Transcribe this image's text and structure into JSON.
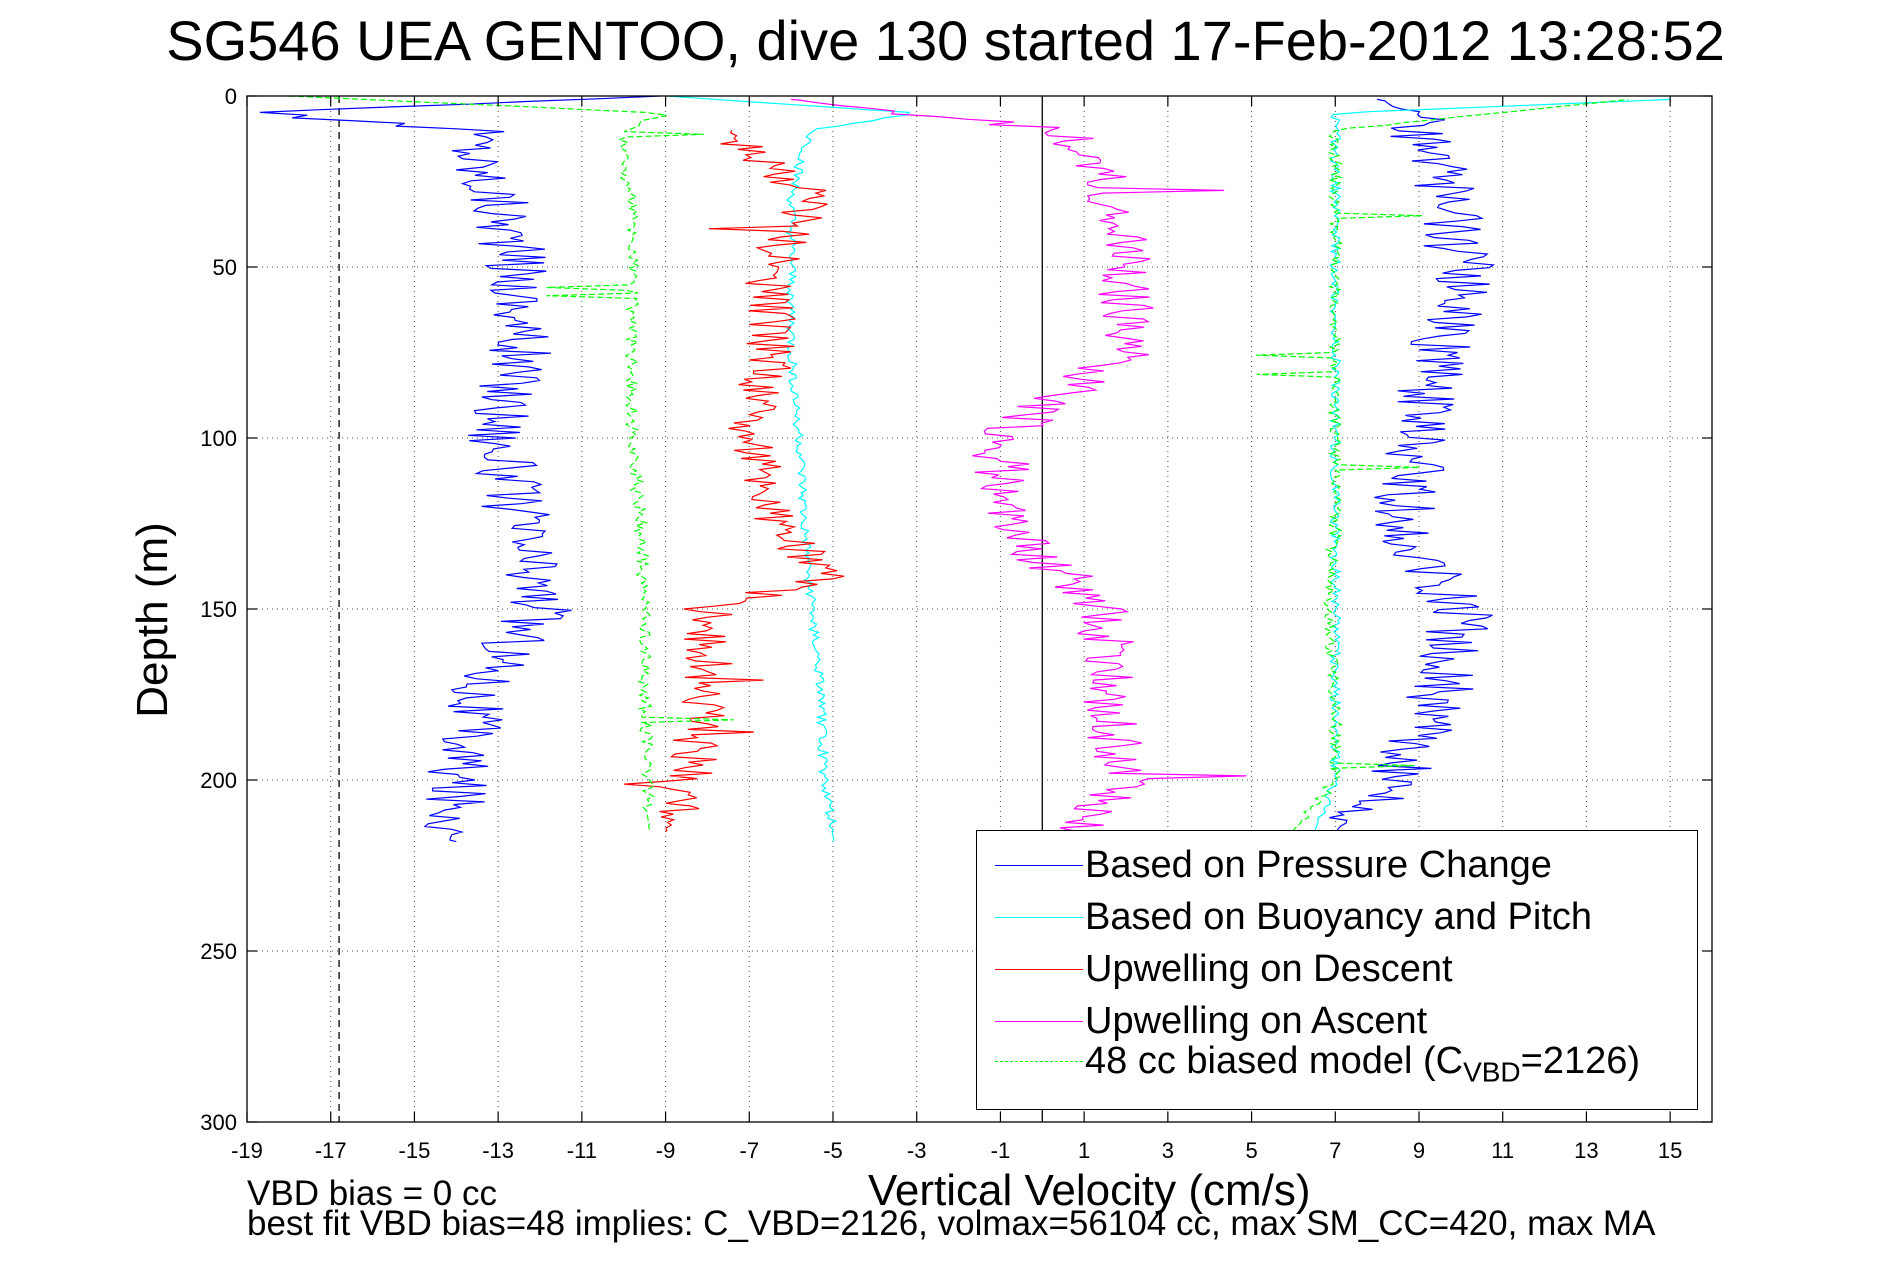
{
  "chart_data": {
    "type": "line",
    "title": "SG546 UEA GENTOO, dive 130 started 17-Feb-2012 13:28:52",
    "xlabel": "Vertical Velocity (cm/s)",
    "ylabel": "Depth (m)",
    "xlim": [
      -19,
      16
    ],
    "ylim": [
      300,
      0
    ],
    "x_ticks": [
      -19,
      -17,
      -15,
      -13,
      -11,
      -9,
      -7,
      -5,
      -3,
      -1,
      1,
      3,
      5,
      7,
      9,
      11,
      13,
      15
    ],
    "y_ticks": [
      0,
      50,
      100,
      150,
      200,
      250,
      300
    ],
    "grid": true,
    "legend_position": "bottom-right",
    "reference_lines": [
      {
        "x": -16.8,
        "style": "dashed",
        "color": "#000000"
      },
      {
        "x": 0,
        "style": "solid",
        "color": "#000000"
      }
    ],
    "annotations": [
      "VBD bias = 0 cc",
      "best fit VBD bias=48 implies: C_VBD=2126, volmax=56104 cc, max SM_CC=420, max MA"
    ],
    "series": [
      {
        "name": "Based on Pressure Change",
        "color": "#0000ff",
        "style": "solid",
        "descent": {
          "depth": [
            0,
            5,
            10,
            20,
            30,
            50,
            75,
            100,
            125,
            150,
            175,
            200,
            215,
            218
          ],
          "velocity": [
            -9,
            -19,
            -13.5,
            -13.5,
            -13,
            -12.5,
            -12.5,
            -13,
            -12.5,
            -12,
            -13.5,
            -14,
            -14,
            -14
          ]
        },
        "ascent": {
          "depth": [
            215,
            200,
            175,
            150,
            125,
            100,
            75,
            50,
            25,
            10,
            5,
            1
          ],
          "velocity": [
            7,
            8.5,
            9.5,
            10,
            8.5,
            9,
            9.5,
            10,
            9.5,
            9,
            9,
            8
          ]
        }
      },
      {
        "name": "Based on Buoyancy and Pitch",
        "color": "#00ffff",
        "style": "solid",
        "descent": {
          "depth": [
            0,
            5,
            10,
            20,
            30,
            50,
            75,
            100,
            125,
            150,
            175,
            200,
            215,
            218
          ],
          "velocity": [
            -9,
            -3,
            -5.5,
            -5.8,
            -6,
            -6,
            -6,
            -5.8,
            -5.7,
            -5.5,
            -5.3,
            -5.2,
            -5,
            -5
          ]
        },
        "ascent": {
          "depth": [
            215,
            200,
            175,
            150,
            125,
            100,
            75,
            50,
            25,
            10,
            5,
            1
          ],
          "velocity": [
            6.5,
            7,
            7,
            7,
            7,
            7,
            7,
            7,
            7,
            7,
            7,
            15
          ]
        }
      },
      {
        "name": "Upwelling on Descent",
        "color": "#ff0000",
        "style": "solid",
        "descent": {
          "depth": [
            10,
            20,
            30,
            50,
            75,
            100,
            125,
            140,
            150,
            175,
            200,
            215
          ],
          "velocity": [
            -7.5,
            -6.5,
            -5.5,
            -6.5,
            -6.5,
            -7,
            -6.5,
            -5,
            -8,
            -8,
            -8.5,
            -9
          ]
        }
      },
      {
        "name": "Upwelling on Ascent",
        "color": "#ff00ff",
        "style": "solid",
        "ascent": {
          "depth": [
            218,
            200,
            175,
            150,
            125,
            100,
            75,
            50,
            25,
            10,
            1
          ],
          "velocity": [
            0.5,
            2,
            1.5,
            1.5,
            -1,
            -1,
            2,
            2,
            1.5,
            0.5,
            -6
          ]
        }
      },
      {
        "name": "48 cc biased model (C_VBD=2126)",
        "color": "#00ff00",
        "style": "dashed",
        "descent": {
          "depth": [
            0,
            5,
            10,
            20,
            30,
            50,
            75,
            100,
            125,
            150,
            175,
            200,
            215
          ],
          "velocity": [
            -18,
            -9,
            -10,
            -10,
            -9.8,
            -9.8,
            -9.8,
            -9.8,
            -9.6,
            -9.5,
            -9.5,
            -9.4,
            -9.4
          ]
        },
        "ascent": {
          "depth": [
            215,
            200,
            175,
            150,
            125,
            100,
            75,
            50,
            25,
            10,
            1
          ],
          "velocity": [
            6,
            7,
            7,
            6.8,
            7,
            7,
            7,
            7,
            7,
            7,
            14
          ]
        }
      }
    ],
    "legend": {
      "items": [
        {
          "label": "Based on Pressure Change",
          "color": "#0000ff",
          "style": "solid"
        },
        {
          "label": "Based on Buoyancy and Pitch",
          "color": "#00ffff",
          "style": "solid"
        },
        {
          "label": "Upwelling on Descent",
          "color": "#ff0000",
          "style": "solid"
        },
        {
          "label": "Upwelling on Ascent",
          "color": "#ff00ff",
          "style": "solid"
        }
      ],
      "model_label_prefix": "48 cc biased model (C",
      "model_label_sub": "VBD",
      "model_label_suffix": "=2126)",
      "model_color": "#00ff00"
    }
  }
}
